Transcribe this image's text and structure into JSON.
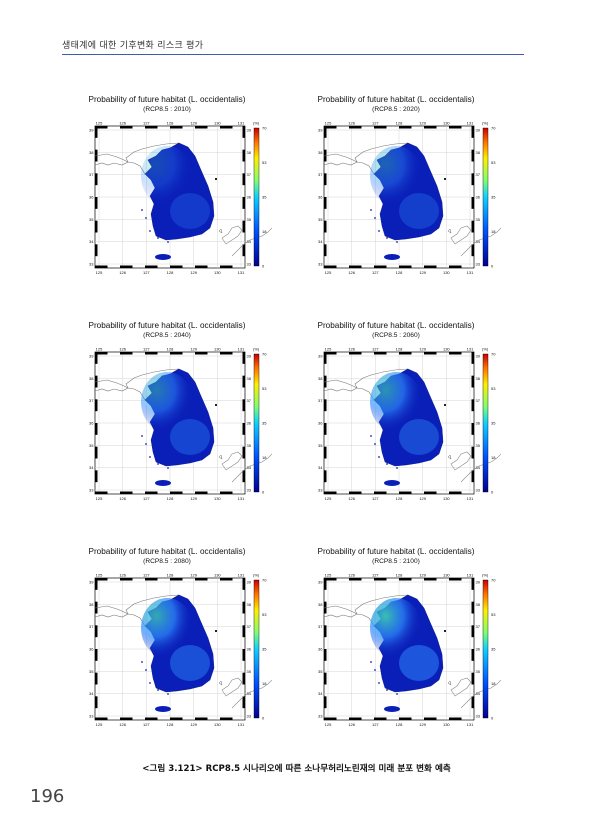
{
  "header": {
    "text": "생태계에 대한 기후변화 리스크 평가"
  },
  "panels": [
    {
      "title": "Probability of future habitat (L. occidentalis)",
      "subtitle": "(RCP8.5 : 2010)"
    },
    {
      "title": "Probability of future habitat (L. occidentalis)",
      "subtitle": "(RCP8.5 : 2020)"
    },
    {
      "title": "Probability of future habitat (L. occidentalis)",
      "subtitle": "(RCP8.5 : 2040)"
    },
    {
      "title": "Probability of future habitat (L. occidentalis)",
      "subtitle": "(RCP8.5 : 2060)"
    },
    {
      "title": "Probability of future habitat (L. occidentalis)",
      "subtitle": "(RCP8.5 : 2080)"
    },
    {
      "title": "Probability of future habitat (L. occidentalis)",
      "subtitle": "(RCP8.5 : 2100)"
    }
  ],
  "map_axes": {
    "x_ticks": [
      "125",
      "126",
      "127",
      "128",
      "129",
      "130",
      "131"
    ],
    "y_ticks": [
      "39",
      "38",
      "37",
      "36",
      "35",
      "34",
      "33"
    ],
    "colorbar_unit": "(%)",
    "colorbar_ticks": [
      "70",
      "53",
      "35",
      "18",
      "0"
    ]
  },
  "colors": {
    "rule": "#3b5bb5",
    "land_low": "#0a1fb8",
    "land_high": "#2f8cff",
    "hotspot": "#3fd2b0"
  },
  "caption": "<그림 3.121> RCP8.5 시나리오에 따른 소나무허리노린재의 미래 분포 변화 예측",
  "page_number": "196"
}
